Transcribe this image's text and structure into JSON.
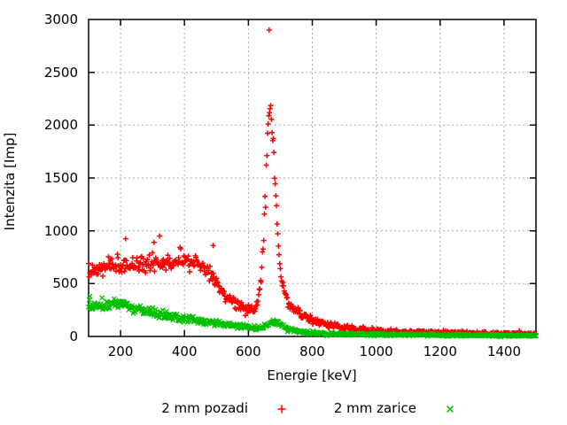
{
  "chart_data": {
    "type": "scatter",
    "title": "",
    "xlabel": "Energie [keV]",
    "ylabel": "Intenzita [Imp]",
    "xlim": [
      100,
      1500
    ],
    "ylim": [
      0,
      3000
    ],
    "x_ticks": [
      200,
      400,
      600,
      800,
      1000,
      1200,
      1400
    ],
    "y_ticks": [
      0,
      500,
      1000,
      1500,
      2000,
      2500,
      3000
    ],
    "grid": true,
    "grid_color": "#a8a8a8",
    "axis_color": "#000000",
    "legend_position": "bottom-center",
    "series": [
      {
        "name": "2 mm pozadi",
        "marker": "plus",
        "color": "#ff0000",
        "step_kev": 2,
        "noise_sigma_scale": 1.5,
        "seed": 7,
        "envelope": [
          [
            100,
            590
          ],
          [
            115,
            625
          ],
          [
            135,
            645
          ],
          [
            160,
            655
          ],
          [
            185,
            660
          ],
          [
            210,
            670
          ],
          [
            240,
            680
          ],
          [
            270,
            685
          ],
          [
            300,
            690
          ],
          [
            330,
            695
          ],
          [
            360,
            700
          ],
          [
            390,
            700
          ],
          [
            420,
            705
          ],
          [
            445,
            700
          ],
          [
            460,
            665
          ],
          [
            475,
            610
          ],
          [
            490,
            545
          ],
          [
            505,
            480
          ],
          [
            520,
            420
          ],
          [
            535,
            370
          ],
          [
            550,
            330
          ],
          [
            565,
            300
          ],
          [
            580,
            275
          ],
          [
            595,
            260
          ],
          [
            610,
            255
          ],
          [
            620,
            270
          ],
          [
            628,
            320
          ],
          [
            635,
            430
          ],
          [
            642,
            640
          ],
          [
            648,
            950
          ],
          [
            653,
            1300
          ],
          [
            657,
            1650
          ],
          [
            661,
            1950
          ],
          [
            664,
            2130
          ],
          [
            667,
            2200
          ],
          [
            670,
            2170
          ],
          [
            673,
            2060
          ],
          [
            677,
            1870
          ],
          [
            681,
            1620
          ],
          [
            686,
            1320
          ],
          [
            691,
            1030
          ],
          [
            696,
            810
          ],
          [
            702,
            620
          ],
          [
            708,
            490
          ],
          [
            715,
            400
          ],
          [
            723,
            335
          ],
          [
            732,
            290
          ],
          [
            742,
            255
          ],
          [
            755,
            220
          ],
          [
            770,
            195
          ],
          [
            785,
            175
          ],
          [
            800,
            160
          ],
          [
            820,
            140
          ],
          [
            840,
            122
          ],
          [
            860,
            107
          ],
          [
            880,
            95
          ],
          [
            900,
            85
          ],
          [
            925,
            74
          ],
          [
            950,
            66
          ],
          [
            975,
            59
          ],
          [
            1000,
            54
          ],
          [
            1040,
            47
          ],
          [
            1080,
            43
          ],
          [
            1120,
            40
          ],
          [
            1160,
            37
          ],
          [
            1200,
            35
          ],
          [
            1250,
            33
          ],
          [
            1300,
            31
          ],
          [
            1350,
            29
          ],
          [
            1400,
            28
          ],
          [
            1450,
            26
          ],
          [
            1500,
            25
          ]
        ],
        "outliers": [
          [
            665,
            2900
          ],
          [
            216,
            925
          ],
          [
            305,
            890
          ],
          [
            322,
            950
          ],
          [
            490,
            860
          ]
        ]
      },
      {
        "name": "2 mm zarice",
        "marker": "cross",
        "color": "#00c000",
        "step_kev": 2,
        "noise_sigma_scale": 1.3,
        "seed": 13,
        "envelope": [
          [
            100,
            295
          ],
          [
            115,
            285
          ],
          [
            130,
            278
          ],
          [
            145,
            280
          ],
          [
            160,
            290
          ],
          [
            175,
            305
          ],
          [
            190,
            318
          ],
          [
            205,
            315
          ],
          [
            220,
            300
          ],
          [
            235,
            280
          ],
          [
            250,
            262
          ],
          [
            270,
            243
          ],
          [
            290,
            228
          ],
          [
            310,
            215
          ],
          [
            330,
            203
          ],
          [
            355,
            192
          ],
          [
            380,
            180
          ],
          [
            405,
            168
          ],
          [
            430,
            157
          ],
          [
            455,
            146
          ],
          [
            480,
            136
          ],
          [
            505,
            126
          ],
          [
            530,
            116
          ],
          [
            555,
            106
          ],
          [
            580,
            95
          ],
          [
            600,
            87
          ],
          [
            615,
            82
          ],
          [
            630,
            82
          ],
          [
            645,
            92
          ],
          [
            658,
            108
          ],
          [
            668,
            122
          ],
          [
            678,
            132
          ],
          [
            688,
            130
          ],
          [
            698,
            118
          ],
          [
            708,
            100
          ],
          [
            718,
            82
          ],
          [
            728,
            67
          ],
          [
            740,
            55
          ],
          [
            755,
            46
          ],
          [
            770,
            40
          ],
          [
            790,
            36
          ],
          [
            810,
            33
          ],
          [
            840,
            29
          ],
          [
            870,
            26
          ],
          [
            900,
            24
          ],
          [
            950,
            21
          ],
          [
            1000,
            19
          ],
          [
            1100,
            16
          ],
          [
            1200,
            13
          ],
          [
            1300,
            11
          ],
          [
            1400,
            10
          ],
          [
            1500,
            8
          ]
        ],
        "outliers": [
          [
            104,
            380
          ],
          [
            142,
            365
          ]
        ]
      }
    ]
  },
  "legend": {
    "items": [
      {
        "label": "2 mm pozadi",
        "marker": "plus-marker-icon",
        "color": "#ff0000"
      },
      {
        "label": "2 mm zarice",
        "marker": "cross-marker-icon",
        "color": "#00c000"
      }
    ]
  }
}
